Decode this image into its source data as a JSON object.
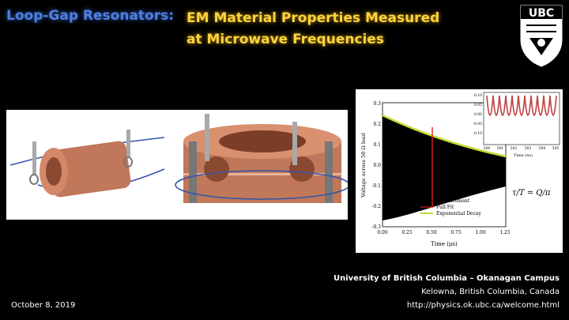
{
  "title": {
    "left": "Loop-Gap Resonators:",
    "right_line1": "EM Material Properties Measured",
    "right_line2": "at Microwave Frequencies"
  },
  "logo": {
    "text": "UBC"
  },
  "plot": {
    "ylabel": "Voltage across 50 Ω load",
    "xlabel": "Time (μs)",
    "x_ticks": [
      "0.00",
      "0.25",
      "0.50",
      "0.75",
      "1.00",
      "1.25"
    ],
    "y_ticks": [
      "0.3",
      "0.2",
      "0.1",
      "0.0",
      "-0.1",
      "-0.2",
      "-0.3"
    ],
    "legend": [
      "Measurement",
      "Full Fit",
      "Exponential Decay"
    ],
    "inset_x_ticks": [
      "500",
      "501",
      "502",
      "503",
      "504",
      "505"
    ],
    "inset_y_ticks": [
      "0.10",
      "0.05",
      "0.00",
      "-0.05",
      "-0.10"
    ],
    "inset_xlabel": "Time (ns)",
    "equation": "τ/T = Q/π"
  },
  "footer": {
    "institution": "University of British Columbia – Okanagan Campus",
    "location": "Kelowna, British Columbia, Canada",
    "url": "http://physics.ok.ubc.ca/welcome.html",
    "date": "October 8, 2019"
  }
}
